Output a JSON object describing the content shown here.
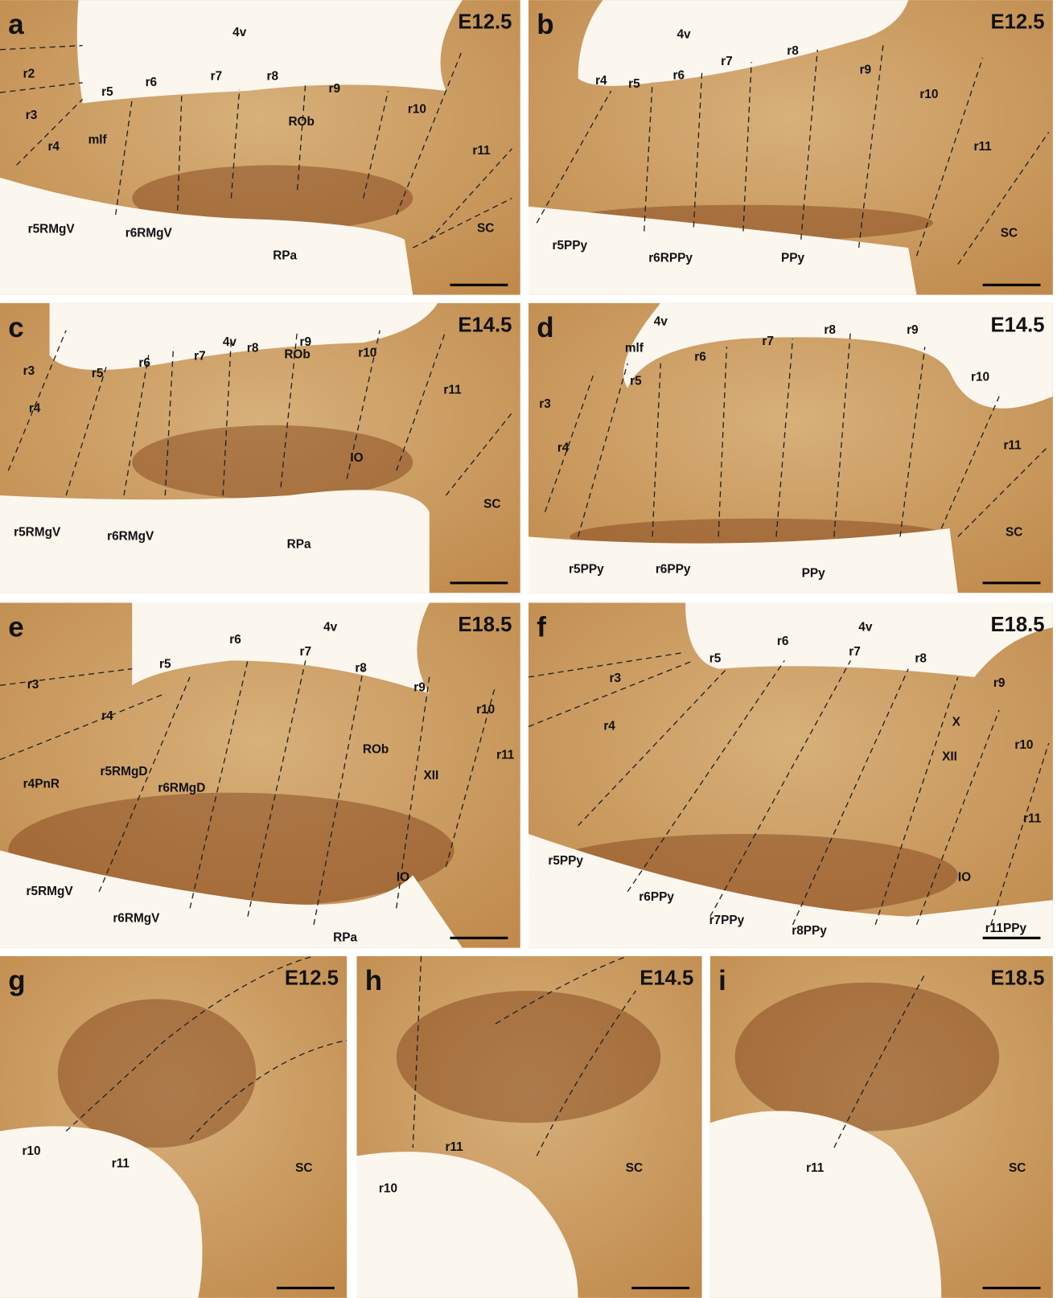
{
  "panels": [
    {
      "letter": "a",
      "stage": "E12.5",
      "labels": [
        "4v",
        "r2",
        "r3",
        "r4",
        "r5",
        "r6",
        "r7",
        "r8",
        "r9",
        "r10",
        "r11",
        "mlf",
        "ROb",
        "r5RMgV",
        "r6RMgV",
        "RPa",
        "SC"
      ]
    },
    {
      "letter": "b",
      "stage": "E12.5",
      "labels": [
        "4v",
        "r4",
        "r5",
        "r6",
        "r7",
        "r8",
        "r9",
        "r10",
        "r11",
        "r5PPy",
        "r6RPPy",
        "PPy",
        "SC"
      ]
    },
    {
      "letter": "c",
      "stage": "E14.5",
      "labels": [
        "4v",
        "r3",
        "r4",
        "r5",
        "r6",
        "r7",
        "r8",
        "r9",
        "r10",
        "r11",
        "ROb",
        "IO",
        "r5RMgV",
        "r6RMgV",
        "RPa",
        "SC"
      ]
    },
    {
      "letter": "d",
      "stage": "E14.5",
      "labels": [
        "4v",
        "mlf",
        "r5",
        "r3",
        "r4",
        "r6",
        "r7",
        "r8",
        "r9",
        "r10",
        "r11",
        "SC",
        "r5PPy",
        "r6PPy",
        "PPy"
      ]
    },
    {
      "letter": "e",
      "stage": "E18.5",
      "labels": [
        "4v",
        "r5",
        "r6",
        "r7",
        "r8",
        "r9",
        "r10",
        "r11",
        "r3",
        "r4",
        "r4PnR",
        "r5RMgD",
        "r6RMgD",
        "ROb",
        "XII",
        "IO",
        "r5RMgV",
        "r6RMgV",
        "RPa"
      ]
    },
    {
      "letter": "f",
      "stage": "E18.5",
      "labels": [
        "4v",
        "r5",
        "r6",
        "r7",
        "r8",
        "r9",
        "r3",
        "r4",
        "X",
        "XII",
        "r10",
        "r11",
        "IO",
        "r5PPy",
        "r6PPy",
        "r7PPy",
        "r8PPy",
        "r11PPy"
      ]
    },
    {
      "letter": "g",
      "stage": "E12.5",
      "labels": [
        "r10",
        "r11",
        "SC"
      ]
    },
    {
      "letter": "h",
      "stage": "E14.5",
      "labels": [
        "r11",
        "r10",
        "SC"
      ]
    },
    {
      "letter": "i",
      "stage": "E18.5",
      "labels": [
        "r11",
        "SC"
      ]
    }
  ]
}
